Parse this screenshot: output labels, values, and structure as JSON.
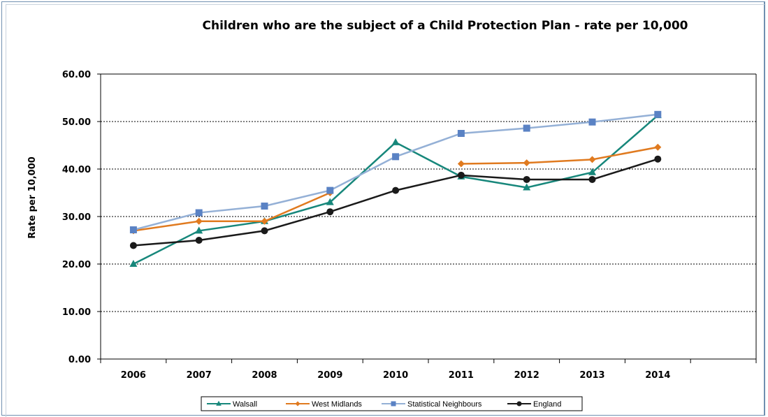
{
  "chart_data": {
    "type": "line",
    "title": "Children who are the subject of a Child Protection Plan - rate per 10,000",
    "ylabel": "Rate per 10,000",
    "xlabel": "",
    "categories": [
      "2006",
      "2007",
      "2008",
      "2009",
      "2010",
      "2011",
      "2012",
      "2013",
      "2014"
    ],
    "yticks": [
      "0.00",
      "10.00",
      "20.00",
      "30.00",
      "40.00",
      "50.00",
      "60.00"
    ],
    "ylim": [
      0,
      60
    ],
    "grid": true,
    "legend_position": "bottom",
    "series": [
      {
        "name": "Walsall",
        "color": "#17877b",
        "marker": "triangle",
        "values": [
          20.0,
          27.0,
          29.0,
          33.0,
          45.6,
          38.4,
          36.1,
          39.3,
          51.3
        ]
      },
      {
        "name": "West Midlands",
        "color": "#e07a1f",
        "marker": "diamond",
        "values": [
          27.0,
          29.0,
          29.0,
          35.0,
          null,
          41.1,
          41.3,
          42.0,
          44.6
        ]
      },
      {
        "name": "Statistical Neighbours",
        "color": "#94b0d6",
        "marker": "square",
        "marker_color": "#5a82c4",
        "values": [
          27.2,
          30.8,
          32.2,
          35.5,
          42.6,
          47.5,
          48.6,
          49.9,
          51.5
        ]
      },
      {
        "name": "England",
        "color": "#1a1a1a",
        "marker": "circle",
        "values": [
          23.9,
          25.0,
          27.0,
          31.0,
          35.5,
          38.7,
          37.8,
          37.8,
          42.1
        ]
      }
    ]
  }
}
